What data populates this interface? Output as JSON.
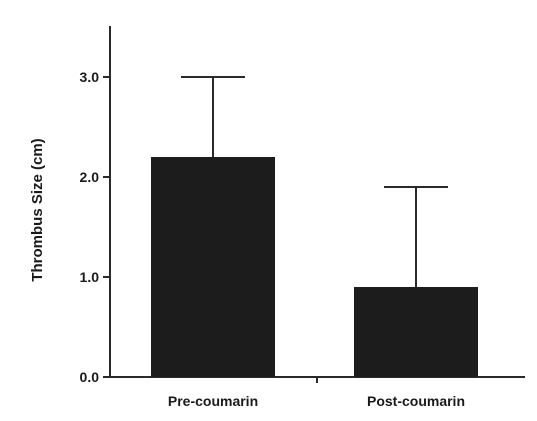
{
  "chart_data": {
    "type": "bar",
    "categories": [
      "Pre-coumarin",
      "Post-coumarin"
    ],
    "values": [
      2.2,
      0.9
    ],
    "error_upper": [
      0.8,
      1.0
    ],
    "title": "",
    "xlabel": "",
    "ylabel": "Thrombus Size (cm)",
    "ylim": [
      0,
      3.5
    ],
    "yticks": [
      0,
      1,
      2,
      3
    ],
    "ytick_labels": [
      "0.0",
      "1.0",
      "2.0",
      "3.0"
    ],
    "grid": false,
    "legend": "none",
    "colors": {
      "bar": "#1c1c1c",
      "axis": "#2a2a2a"
    }
  }
}
